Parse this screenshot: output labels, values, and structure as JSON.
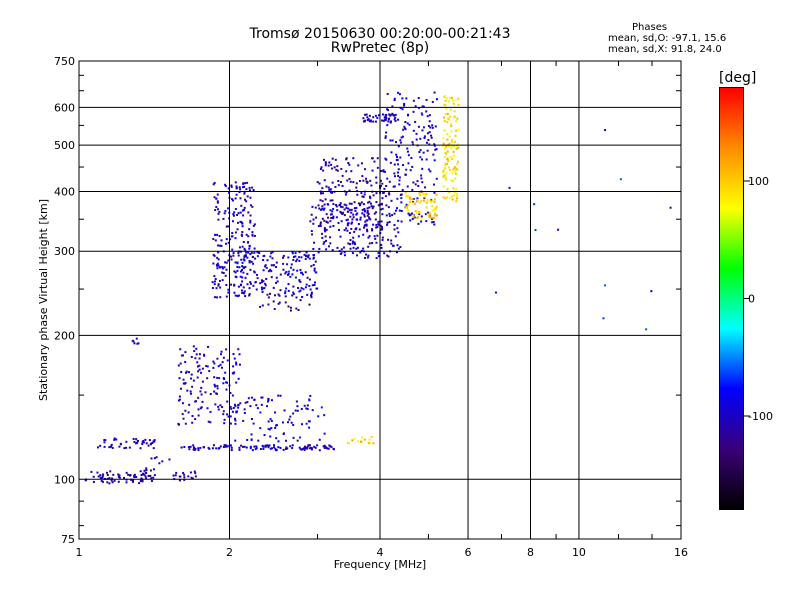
{
  "header": {
    "title": "Tromsø 20150630 00:20:00-00:21:43",
    "subtitle": "RwPretec (8p)"
  },
  "stats": {
    "heading": "Phases",
    "line_o": "mean, sd,O: -97.1, 15.6",
    "line_x": "mean, sd,X:  91.8, 24.0"
  },
  "colorbar": {
    "title": "[deg]",
    "range": [
      -180,
      180
    ],
    "ticks": [
      100,
      0,
      -100
    ],
    "stops": [
      "#000000",
      "#3a007a",
      "#0000ff",
      "#00ffff",
      "#00ff00",
      "#ffff00",
      "#ff8c00",
      "#ff0000"
    ]
  },
  "chart_data": {
    "type": "scatter",
    "title": "Tromsø 20150630 00:20:00-00:21:43",
    "subtitle": "RwPretec (8p)",
    "xlabel": "Frequency [MHz]",
    "ylabel": "Stationary phase Virtual Height [km]",
    "xscale": "log",
    "yscale": "log",
    "xlim": [
      1,
      16
    ],
    "ylim": [
      75,
      750
    ],
    "xticks": [
      1,
      2,
      4,
      6,
      8,
      10,
      16
    ],
    "yticks": [
      75,
      100,
      200,
      300,
      400,
      500,
      600,
      750
    ],
    "grid": true,
    "color_by": "phase [deg]",
    "clusters": [
      {
        "f_range": [
          1.03,
          1.42
        ],
        "h_range": [
          98,
          104
        ],
        "phase": -110,
        "count": 70
      },
      {
        "f_range": [
          1.09,
          1.42
        ],
        "h_range": [
          116,
          122
        ],
        "phase": -105,
        "count": 45
      },
      {
        "f_range": [
          1.35,
          1.52
        ],
        "h_range": [
          103,
          112
        ],
        "phase": -100,
        "count": 12
      },
      {
        "f_range": [
          1.27,
          1.32
        ],
        "h_range": [
          192,
          198
        ],
        "phase": -100,
        "count": 6
      },
      {
        "f_range": [
          1.54,
          1.72
        ],
        "h_range": [
          99,
          104
        ],
        "phase": -110,
        "count": 18
      },
      {
        "f_range": [
          1.58,
          2.1
        ],
        "h_range": [
          130,
          190
        ],
        "phase": -100,
        "count": 150
      },
      {
        "f_range": [
          1.6,
          3.3
        ],
        "h_range": [
          115,
          118
        ],
        "phase": -100,
        "count": 110
      },
      {
        "f_range": [
          2.05,
          3.1
        ],
        "h_range": [
          120,
          150
        ],
        "phase": -95,
        "count": 90
      },
      {
        "f_range": [
          1.85,
          2.25
        ],
        "h_range": [
          240,
          420
        ],
        "phase": -100,
        "count": 220
      },
      {
        "f_range": [
          2.05,
          3.0
        ],
        "h_range": [
          245,
          300
        ],
        "phase": -95,
        "count": 160
      },
      {
        "f_range": [
          2.3,
          2.95
        ],
        "h_range": [
          225,
          245
        ],
        "phase": -120,
        "count": 30
      },
      {
        "f_range": [
          2.9,
          4.4
        ],
        "h_range": [
          290,
          380
        ],
        "phase": -100,
        "count": 170
      },
      {
        "f_range": [
          3.0,
          4.1
        ],
        "h_range": [
          330,
          470
        ],
        "phase": -110,
        "count": 200
      },
      {
        "f_range": [
          3.7,
          4.3
        ],
        "h_range": [
          560,
          580
        ],
        "phase": -100,
        "count": 40
      },
      {
        "f_range": [
          4.1,
          5.2
        ],
        "h_range": [
          340,
          650
        ],
        "phase": -95,
        "count": 200
      },
      {
        "f_range": [
          4.5,
          5.2
        ],
        "h_range": [
          350,
          400
        ],
        "phase": 95,
        "count": 70
      },
      {
        "f_range": [
          5.35,
          5.75
        ],
        "h_range": [
          380,
          640
        ],
        "phase": 90,
        "count": 120
      },
      {
        "f_range": [
          3.45,
          3.9
        ],
        "h_range": [
          117,
          123
        ],
        "phase": 100,
        "count": 14
      },
      {
        "f_range": [
          6.5,
          16
        ],
        "h_range": [
          200,
          600
        ],
        "phase": -80,
        "count": 12
      }
    ]
  }
}
